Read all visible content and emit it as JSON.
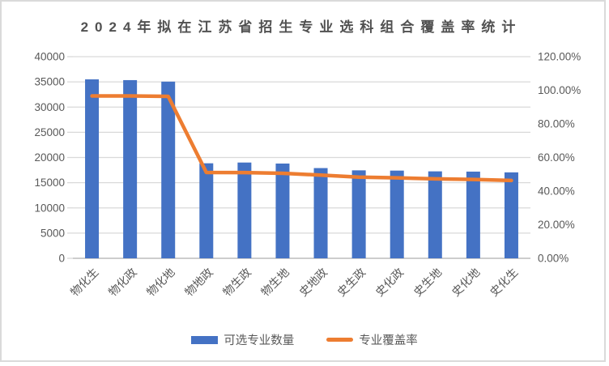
{
  "window": {
    "background": "#ffffff",
    "border_color": "#DADADA"
  },
  "chart_data": {
    "type": "bar",
    "combo": "bar+line",
    "title": "2024年拟在江苏省招生专业选科组合覆盖率统计",
    "categories": [
      "物化生",
      "物化政",
      "物化地",
      "物地政",
      "物生政",
      "物生地",
      "史地政",
      "史生政",
      "史化政",
      "史生地",
      "史化地",
      "史化生"
    ],
    "series": [
      {
        "name": "可选专业数量",
        "type": "bar",
        "axis": "left",
        "color": "#4472C4",
        "values": [
          35500,
          35350,
          35050,
          18850,
          19000,
          18800,
          17900,
          17450,
          17400,
          17250,
          17200,
          17050
        ]
      },
      {
        "name": "专业覆盖率",
        "type": "line",
        "axis": "right",
        "color": "#ED7D31",
        "values_percent": [
          96.6,
          96.6,
          96.4,
          51.1,
          51.0,
          50.6,
          49.5,
          48.3,
          47.9,
          47.3,
          46.9,
          46.3
        ]
      }
    ],
    "left_axis": {
      "min": 0,
      "max": 40000,
      "step": 5000,
      "tick_labels": [
        "0",
        "5000",
        "10000",
        "15000",
        "20000",
        "25000",
        "30000",
        "35000",
        "40000"
      ]
    },
    "right_axis": {
      "min": 0,
      "max": 120,
      "step": 20,
      "tick_labels": [
        "0.00%",
        "20.00%",
        "40.00%",
        "60.00%",
        "80.00%",
        "100.00%",
        "120.00%"
      ]
    },
    "grid": true,
    "gridline_color": "#D9D9D9",
    "baseline_color": "#C6C6C6",
    "axis_text_color": "#595959",
    "title_color": "#515151",
    "legend_position": "bottom",
    "x_label_rotation_deg": -45
  }
}
